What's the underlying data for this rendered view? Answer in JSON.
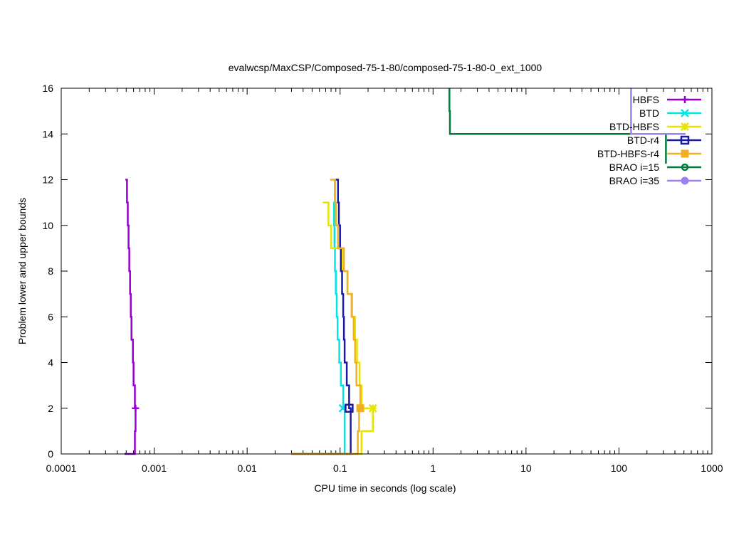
{
  "chart_data": {
    "type": "line",
    "title": "evalwcsp/MaxCSP/Composed-75-1-80/composed-75-1-80-0_ext_1000",
    "xlabel": "CPU time in seconds (log scale)",
    "ylabel": "Problem lower and upper bounds",
    "x_scale": "log",
    "xlim": [
      0.0001,
      1000
    ],
    "ylim": [
      0,
      16
    ],
    "x_ticks": [
      0.0001,
      0.001,
      0.01,
      0.1,
      1,
      10,
      100,
      1000
    ],
    "x_tick_labels": [
      "0.0001",
      "0.001",
      "0.01",
      "0.1",
      "1",
      "10",
      "100",
      "1000"
    ],
    "y_ticks": [
      0,
      2,
      4,
      6,
      8,
      10,
      12,
      14,
      16
    ],
    "y_tick_labels": [
      "0",
      "2",
      "4",
      "6",
      "8",
      "10",
      "12",
      "14",
      "16"
    ],
    "grid": false,
    "legend_position": "top-right",
    "series": [
      {
        "name": "HBFS",
        "color": "#9400d3",
        "marker": "plus",
        "steps": [
          [
            0.00048,
            0
          ],
          [
            0.00062,
            0
          ],
          [
            0.00062,
            1
          ],
          [
            0.00063,
            1
          ],
          [
            0.00063,
            2
          ],
          [
            0.00062,
            2
          ],
          [
            0.00062,
            3
          ],
          [
            0.0006,
            3
          ],
          [
            0.0006,
            4
          ],
          [
            0.00059,
            4
          ],
          [
            0.00059,
            5
          ],
          [
            0.00057,
            5
          ],
          [
            0.00057,
            6
          ],
          [
            0.00056,
            6
          ],
          [
            0.00056,
            7
          ],
          [
            0.00055,
            7
          ],
          [
            0.00055,
            8
          ],
          [
            0.00054,
            8
          ],
          [
            0.00054,
            9
          ],
          [
            0.00053,
            9
          ],
          [
            0.00053,
            10
          ],
          [
            0.00052,
            10
          ],
          [
            0.00052,
            11
          ],
          [
            0.00051,
            11
          ],
          [
            0.00051,
            12
          ],
          [
            0.00049,
            12
          ]
        ],
        "markers": [
          [
            0.00063,
            2
          ]
        ]
      },
      {
        "name": "BTD",
        "color": "#00e5e5",
        "marker": "cross",
        "steps": [
          [
            0.03,
            0
          ],
          [
            0.112,
            0
          ],
          [
            0.112,
            1
          ],
          [
            0.112,
            2
          ],
          [
            0.108,
            2
          ],
          [
            0.108,
            3
          ],
          [
            0.102,
            3
          ],
          [
            0.102,
            4
          ],
          [
            0.098,
            4
          ],
          [
            0.098,
            5
          ],
          [
            0.094,
            5
          ],
          [
            0.094,
            6
          ],
          [
            0.092,
            6
          ],
          [
            0.092,
            7
          ],
          [
            0.09,
            7
          ],
          [
            0.09,
            8
          ],
          [
            0.088,
            8
          ],
          [
            0.088,
            9
          ],
          [
            0.087,
            9
          ],
          [
            0.087,
            10
          ],
          [
            0.086,
            10
          ],
          [
            0.086,
            11
          ],
          [
            0.088,
            11
          ],
          [
            0.088,
            12
          ],
          [
            0.085,
            12
          ]
        ],
        "markers": [
          [
            0.107,
            2
          ]
        ]
      },
      {
        "name": "BTD-HBFS",
        "color": "#e5e500",
        "marker": "star",
        "steps": [
          [
            0.03,
            0
          ],
          [
            0.17,
            0
          ],
          [
            0.17,
            1
          ],
          [
            0.225,
            1
          ],
          [
            0.225,
            2
          ],
          [
            0.17,
            2
          ],
          [
            0.17,
            3
          ],
          [
            0.162,
            3
          ],
          [
            0.162,
            4
          ],
          [
            0.152,
            4
          ],
          [
            0.152,
            5
          ],
          [
            0.145,
            5
          ],
          [
            0.145,
            6
          ],
          [
            0.135,
            6
          ],
          [
            0.135,
            7
          ],
          [
            0.12,
            7
          ],
          [
            0.12,
            8
          ],
          [
            0.105,
            8
          ],
          [
            0.105,
            9
          ],
          [
            0.08,
            9
          ],
          [
            0.08,
            10
          ],
          [
            0.075,
            10
          ],
          [
            0.075,
            11
          ],
          [
            0.065,
            11
          ]
        ],
        "markers": [
          [
            0.225,
            2
          ]
        ]
      },
      {
        "name": "BTD-r4",
        "color": "#1a1aa6",
        "marker": "open-square",
        "steps": [
          [
            0.03,
            0
          ],
          [
            0.13,
            0
          ],
          [
            0.13,
            2
          ],
          [
            0.125,
            2
          ],
          [
            0.125,
            3
          ],
          [
            0.118,
            3
          ],
          [
            0.118,
            4
          ],
          [
            0.112,
            4
          ],
          [
            0.112,
            5
          ],
          [
            0.11,
            5
          ],
          [
            0.11,
            6
          ],
          [
            0.108,
            6
          ],
          [
            0.108,
            7
          ],
          [
            0.105,
            7
          ],
          [
            0.105,
            8
          ],
          [
            0.102,
            8
          ],
          [
            0.102,
            9
          ],
          [
            0.1,
            9
          ],
          [
            0.1,
            10
          ],
          [
            0.097,
            10
          ],
          [
            0.097,
            11
          ],
          [
            0.095,
            11
          ],
          [
            0.095,
            12
          ],
          [
            0.09,
            12
          ]
        ],
        "markers": [
          [
            0.125,
            2
          ]
        ]
      },
      {
        "name": "BTD-HBFS-r4",
        "color": "#f0b020",
        "marker": "filled-square",
        "steps": [
          [
            0.03,
            0
          ],
          [
            0.155,
            0
          ],
          [
            0.155,
            1
          ],
          [
            0.16,
            1
          ],
          [
            0.16,
            2
          ],
          [
            0.165,
            2
          ],
          [
            0.165,
            3
          ],
          [
            0.15,
            3
          ],
          [
            0.15,
            4
          ],
          [
            0.145,
            4
          ],
          [
            0.145,
            5
          ],
          [
            0.14,
            5
          ],
          [
            0.14,
            6
          ],
          [
            0.133,
            6
          ],
          [
            0.133,
            7
          ],
          [
            0.12,
            7
          ],
          [
            0.12,
            8
          ],
          [
            0.11,
            8
          ],
          [
            0.11,
            9
          ],
          [
            0.095,
            9
          ],
          [
            0.095,
            10
          ],
          [
            0.09,
            10
          ],
          [
            0.09,
            11
          ],
          [
            0.088,
            11
          ],
          [
            0.088,
            12
          ],
          [
            0.078,
            12
          ]
        ],
        "markers": [
          [
            0.165,
            2
          ]
        ]
      },
      {
        "name": "BRAO i=15",
        "color": "#007a3d",
        "marker": "open-circle",
        "steps": [
          [
            1.5,
            16
          ],
          [
            1.5,
            15
          ],
          [
            1.52,
            15
          ],
          [
            1.52,
            14
          ],
          [
            320,
            14
          ],
          [
            320,
            13
          ],
          [
            320,
            12.7
          ]
        ],
        "markers": []
      },
      {
        "name": "BRAO i=35",
        "color": "#9f80f0",
        "marker": "filled-circle",
        "steps": [
          [
            135,
            16
          ],
          [
            135,
            14
          ],
          [
            520,
            14
          ]
        ],
        "markers": []
      }
    ]
  }
}
